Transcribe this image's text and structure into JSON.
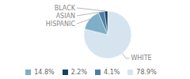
{
  "chart_data": {
    "type": "pie",
    "categories": [
      "WHITE",
      "HISPANIC",
      "ASIAN",
      "BLACK"
    ],
    "values": [
      78.9,
      14.8,
      4.1,
      2.2
    ],
    "value_labels": [
      "78.9%",
      "14.8%",
      "4.1%",
      "2.2%"
    ],
    "colors": [
      "#d6e4f0",
      "#7faec8",
      "#4a7fa5",
      "#1c3f5e"
    ],
    "legend": "bottom"
  }
}
